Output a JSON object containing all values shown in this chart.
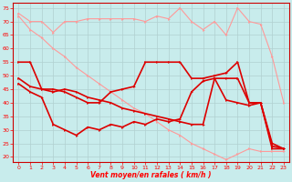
{
  "xlabel": "Vent moyen/en rafales ( km/h )",
  "background_color": "#c8ecec",
  "grid_color": "#b0d0d0",
  "x_values": [
    0,
    1,
    2,
    3,
    4,
    5,
    6,
    7,
    8,
    9,
    10,
    11,
    12,
    13,
    14,
    15,
    16,
    17,
    18,
    19,
    20,
    21,
    22,
    23
  ],
  "ylim": [
    18,
    77
  ],
  "yticks": [
    20,
    25,
    30,
    35,
    40,
    45,
    50,
    55,
    60,
    65,
    70,
    75
  ],
  "line1_color": "#ff9999",
  "line2_color": "#ff9999",
  "line3_color": "#dd0000",
  "line4_color": "#dd0000",
  "line5_color": "#dd0000",
  "line1_lw": 0.8,
  "line2_lw": 0.8,
  "line3_lw": 1.2,
  "line4_lw": 1.2,
  "line5_lw": 1.2,
  "line1_y": [
    73,
    70,
    70,
    66,
    70,
    70,
    71,
    71,
    71,
    71,
    71,
    70,
    72,
    71,
    75,
    70,
    67,
    70,
    65,
    75,
    70,
    69,
    57,
    40
  ],
  "line2_y": [
    72,
    67,
    64,
    60,
    57,
    53,
    50,
    47,
    44,
    41,
    38,
    36,
    33,
    30,
    28,
    25,
    23,
    21,
    19,
    21,
    23,
    22,
    22,
    22
  ],
  "line3_y": [
    55,
    55,
    45,
    45,
    44,
    42,
    40,
    40,
    44,
    45,
    46,
    55,
    55,
    55,
    55,
    49,
    49,
    50,
    51,
    55,
    40,
    40,
    25,
    23
  ],
  "line4_y": [
    49,
    46,
    45,
    44,
    45,
    44,
    42,
    41,
    40,
    38,
    37,
    36,
    35,
    34,
    33,
    32,
    32,
    49,
    49,
    49,
    40,
    40,
    23,
    23
  ],
  "line5_y": [
    47,
    44,
    42,
    32,
    30,
    28,
    31,
    30,
    32,
    31,
    33,
    32,
    34,
    33,
    34,
    44,
    48,
    49,
    41,
    40,
    39,
    40,
    24,
    23
  ]
}
